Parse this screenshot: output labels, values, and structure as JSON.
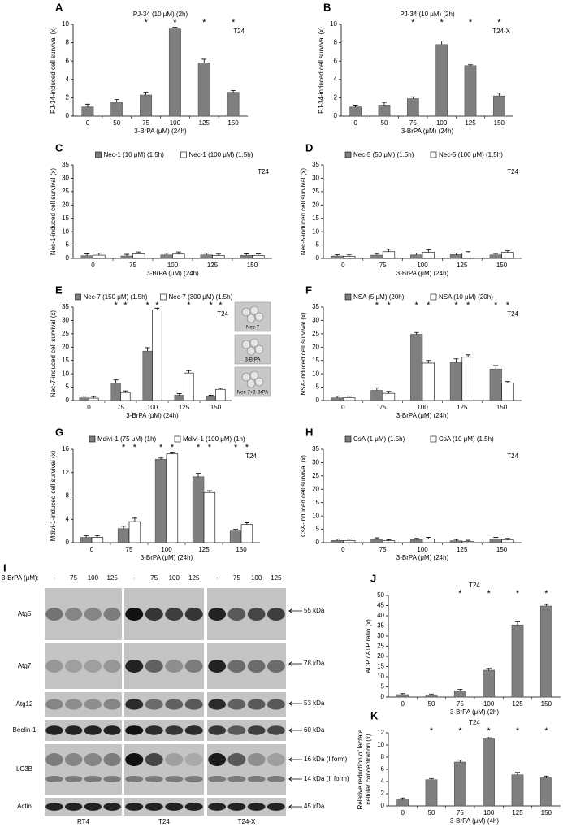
{
  "chart_data": [
    {
      "type": "bar",
      "panel": "A",
      "title": "PJ-34 (10 μM) (2h)",
      "cell_line": "T24",
      "xlabel": "3-BrPA (μM) (24h)",
      "ylabel": [
        "PJ-34-induced cell survival (x)"
      ],
      "categories": [
        "0",
        "50",
        "75",
        "100",
        "125",
        "150"
      ],
      "series": [
        {
          "color": "#7f7f7f",
          "values": [
            1.0,
            1.5,
            2.3,
            9.5,
            5.8,
            2.6
          ],
          "errors": [
            0.3,
            0.3,
            0.3,
            0.2,
            0.4,
            0.2
          ],
          "significance": [
            null,
            null,
            "*",
            "*",
            "*",
            "*"
          ]
        }
      ],
      "ylim": [
        0,
        10
      ],
      "yticks": [
        0,
        2,
        4,
        6,
        8,
        10
      ]
    },
    {
      "type": "bar",
      "panel": "B",
      "title": "PJ-34 (10 μM) (2h)",
      "cell_line": "T24-X",
      "xlabel": "3-BrPA (μM) (24h)",
      "ylabel": [
        "PJ-34-induced cell survival (x)"
      ],
      "categories": [
        "0",
        "50",
        "75",
        "100",
        "125",
        "150"
      ],
      "series": [
        {
          "color": "#7f7f7f",
          "values": [
            1.0,
            1.2,
            1.9,
            7.8,
            5.5,
            2.2
          ],
          "errors": [
            0.2,
            0.3,
            0.2,
            0.4,
            0.1,
            0.3
          ],
          "significance": [
            null,
            null,
            "*",
            "*",
            "*",
            "*"
          ]
        }
      ],
      "ylim": [
        0,
        10
      ],
      "yticks": [
        0,
        2,
        4,
        6,
        8,
        10
      ]
    },
    {
      "type": "bar",
      "panel": "C",
      "cell_line": "T24",
      "xlabel": "3-BrPA (μM) (24h)",
      "ylabel": [
        "Nec-1-induced cell survival (x)"
      ],
      "categories": [
        "0",
        "75",
        "100",
        "125",
        "150"
      ],
      "series": [
        {
          "name": "Nec-1 (10 μM) (1.5h)",
          "color": "#7f7f7f",
          "values": [
            1.0,
            0.9,
            1.3,
            1.3,
            1.1
          ],
          "errors": [
            0.7,
            0.6,
            0.6,
            0.6,
            0.6
          ]
        },
        {
          "name": "Nec-1 (100 μM) (1.5h)",
          "color": "#ffffff",
          "values": [
            1.2,
            1.7,
            1.6,
            1.1,
            1.1
          ],
          "errors": [
            0.7,
            0.7,
            0.8,
            0.5,
            0.6
          ]
        }
      ],
      "ylim": [
        0,
        35
      ],
      "yticks": [
        0,
        5,
        10,
        15,
        20,
        25,
        30,
        35
      ]
    },
    {
      "type": "bar",
      "panel": "D",
      "cell_line": "T24",
      "xlabel": "3-BrPA (μM) (24h)",
      "ylabel": [
        "Nec-5-induced cell survival (x)"
      ],
      "categories": [
        "0",
        "75",
        "100",
        "125",
        "150"
      ],
      "series": [
        {
          "name": "Nec-5 (50 μM) (1.5h)",
          "color": "#7f7f7f",
          "values": [
            0.9,
            1.2,
            1.3,
            1.4,
            1.3
          ],
          "errors": [
            0.5,
            0.6,
            0.7,
            0.6,
            0.5
          ]
        },
        {
          "name": "Nec-5 (100 μM) (1.5h)",
          "color": "#ffffff",
          "values": [
            0.8,
            2.5,
            2.3,
            2.0,
            2.3
          ],
          "errors": [
            0.5,
            0.9,
            0.9,
            0.5,
            0.6
          ]
        }
      ],
      "ylim": [
        0,
        35
      ],
      "yticks": [
        0,
        5,
        10,
        15,
        20,
        25,
        30,
        35
      ]
    },
    {
      "type": "bar",
      "panel": "E",
      "cell_line": "T24",
      "xlabel": "3-BrPA (μM) (24h)",
      "ylabel": [
        "Nec-7-induced cell survival (x)"
      ],
      "categories": [
        "0",
        "75",
        "100",
        "125",
        "150"
      ],
      "series": [
        {
          "name": "Nec-7 (150 μM) (1.5h)",
          "color": "#7f7f7f",
          "values": [
            1.0,
            6.5,
            18.5,
            2.0,
            1.5
          ],
          "errors": [
            0.6,
            1.2,
            1.3,
            0.6,
            0.5
          ],
          "significance": [
            null,
            "*",
            "*",
            null,
            "*"
          ]
        },
        {
          "name": "Nec-7 (300 μM) (1.5h)",
          "color": "#ffffff",
          "values": [
            0.9,
            3.0,
            34.0,
            10.3,
            4.2
          ],
          "errors": [
            0.6,
            0.6,
            0.6,
            0.9,
            0.4
          ],
          "significance": [
            null,
            "*",
            "*",
            "*",
            "*"
          ]
        }
      ],
      "insets": [
        "Nec-7",
        "3-BrPA",
        "Nec-7+3-BrPA"
      ],
      "ylim": [
        0,
        35
      ],
      "yticks": [
        0,
        5,
        10,
        15,
        20,
        25,
        30,
        35
      ]
    },
    {
      "type": "bar",
      "panel": "F",
      "cell_line": "T24",
      "xlabel": "3-BrPA (μM) (24h)",
      "ylabel": [
        "NSA-induced cell survival (x)"
      ],
      "categories": [
        "0",
        "75",
        "100",
        "125",
        "150"
      ],
      "series": [
        {
          "name": "NSA (5 μM) (20h)",
          "color": "#7f7f7f",
          "values": [
            1.0,
            3.8,
            24.8,
            14.3,
            11.8
          ],
          "errors": [
            0.6,
            1.0,
            0.7,
            1.3,
            1.3
          ],
          "significance": [
            null,
            "*",
            "*",
            "*",
            "*"
          ]
        },
        {
          "name": "NSA (10 μM) (20h)",
          "color": "#ffffff",
          "values": [
            1.0,
            2.7,
            14.0,
            16.2,
            6.5
          ],
          "errors": [
            0.6,
            0.7,
            1.0,
            0.9,
            0.6
          ],
          "significance": [
            null,
            "*",
            "*",
            "*",
            "*"
          ]
        }
      ],
      "ylim": [
        0,
        35
      ],
      "yticks": [
        0,
        5,
        10,
        15,
        20,
        25,
        30,
        35
      ]
    },
    {
      "type": "bar",
      "panel": "G",
      "cell_line": "T24",
      "xlabel": "3-BrPA (μM) (24h)",
      "ylabel": [
        "Mdivi-1-induced cell survival (x)"
      ],
      "categories": [
        "0",
        "75",
        "100",
        "125",
        "150"
      ],
      "series": [
        {
          "name": "Mdivi-1 (75 μM) (1h)",
          "color": "#7f7f7f",
          "values": [
            0.9,
            2.4,
            14.3,
            11.3,
            2.0
          ],
          "errors": [
            0.3,
            0.4,
            0.2,
            0.6,
            0.3
          ],
          "significance": [
            null,
            "*",
            "*",
            "*",
            "*"
          ]
        },
        {
          "name": "Mdivi-1 (100 μM) (1h)",
          "color": "#ffffff",
          "values": [
            0.9,
            3.6,
            15.2,
            8.6,
            3.1
          ],
          "errors": [
            0.3,
            0.6,
            0.2,
            0.3,
            0.3
          ],
          "significance": [
            null,
            "*",
            "*",
            "*",
            "*"
          ]
        }
      ],
      "ylim": [
        0,
        16
      ],
      "yticks": [
        0,
        4,
        8,
        12,
        16
      ]
    },
    {
      "type": "bar",
      "panel": "H",
      "cell_line": "T24",
      "xlabel": "3-BrPA (μM) (24h)",
      "ylabel": [
        "CsA-induced cell survival (x)"
      ],
      "categories": [
        "0",
        "75",
        "100",
        "125",
        "150"
      ],
      "series": [
        {
          "name": "CsA (1 μM) (1.5h)",
          "color": "#7f7f7f",
          "values": [
            0.8,
            1.2,
            1.1,
            0.7,
            1.3
          ],
          "errors": [
            0.5,
            0.6,
            0.5,
            0.5,
            0.7
          ]
        },
        {
          "name": "CsA (10 μM) (1.5h)",
          "color": "#ffffff",
          "values": [
            0.8,
            0.7,
            1.3,
            0.5,
            1.0
          ],
          "errors": [
            0.5,
            0.4,
            0.7,
            0.4,
            0.6
          ]
        }
      ],
      "ylim": [
        0,
        35
      ],
      "yticks": [
        0,
        5,
        10,
        15,
        20,
        25,
        30,
        35
      ]
    },
    {
      "type": "bar",
      "panel": "J",
      "title": "T24",
      "xlabel": "3-BrPA (μM) (2h)",
      "ylabel": [
        "ADP / ATP ratio (x)"
      ],
      "categories": [
        "0",
        "50",
        "75",
        "100",
        "125",
        "150"
      ],
      "series": [
        {
          "color": "#7f7f7f",
          "values": [
            1.2,
            1.0,
            3.0,
            13.2,
            35.5,
            44.8
          ],
          "errors": [
            0.5,
            0.5,
            0.8,
            0.9,
            1.5,
            0.8
          ],
          "significance": [
            null,
            null,
            "*",
            "*",
            "*",
            "*"
          ]
        }
      ],
      "ylim": [
        0,
        50
      ],
      "yticks": [
        0,
        5,
        10,
        15,
        20,
        25,
        30,
        35,
        40,
        45,
        50
      ]
    },
    {
      "type": "bar",
      "panel": "K",
      "title": "T24",
      "xlabel": "3-BrPA (μM) (4h)",
      "ylabel": [
        "Relative reduction of lactate",
        "cellular concentration (x)"
      ],
      "categories": [
        "0",
        "50",
        "75",
        "100",
        "125",
        "150"
      ],
      "series": [
        {
          "color": "#7f7f7f",
          "values": [
            1.0,
            4.3,
            7.2,
            11.0,
            5.1,
            4.6
          ],
          "errors": [
            0.3,
            0.2,
            0.3,
            0.2,
            0.4,
            0.3
          ],
          "significance": [
            null,
            "*",
            "*",
            "*",
            "*",
            "*"
          ]
        }
      ],
      "ylim": [
        0,
        12
      ],
      "yticks": [
        0,
        2,
        4,
        6,
        8,
        10,
        12
      ]
    }
  ],
  "blot": {
    "panel": "I",
    "treatment_label": "3-BrPA (μM):",
    "lanes": [
      "-",
      "75",
      "100",
      "125"
    ],
    "groups": [
      "RT4",
      "T24",
      "T24-X"
    ],
    "proteins": [
      "Atg5",
      "Atg7",
      "Atg12",
      "Beclin-1",
      "LC3B",
      "Actin"
    ],
    "sizes": [
      "55 kDa",
      "78 kDa",
      "53 kDa",
      "60 kDa",
      "16 kDa (I form)",
      "14 kDa (II form)",
      "45 kDa"
    ]
  }
}
